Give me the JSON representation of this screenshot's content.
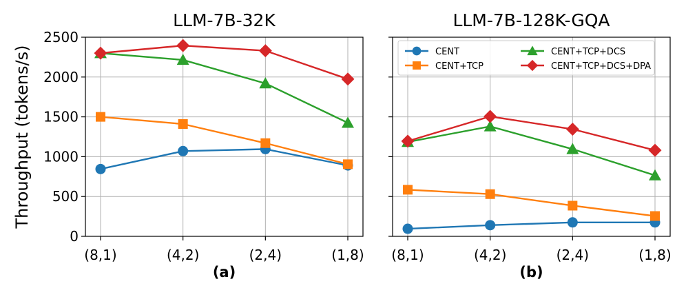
{
  "chart_data": [
    {
      "type": "line",
      "title": "LLM-7B-32K",
      "sublabel": "(a)",
      "ylabel": "Throughput (tokens/s)",
      "categories": [
        "(8,1)",
        "(4,2)",
        "(2,4)",
        "(1,8)"
      ],
      "ylim": [
        0,
        2500
      ],
      "yticks": [
        0,
        500,
        1000,
        1500,
        2000,
        2500
      ],
      "grid": true,
      "series": [
        {
          "name": "CENT",
          "color": "#1f77b4",
          "marker": "circle",
          "values": [
            845,
            1070,
            1095,
            890
          ]
        },
        {
          "name": "CENT+TCP",
          "color": "#ff7f0e",
          "marker": "square",
          "values": [
            1500,
            1410,
            1170,
            905
          ]
        },
        {
          "name": "CENT+TCP+DCS",
          "color": "#2ca02c",
          "marker": "triangle",
          "values": [
            2300,
            2215,
            1920,
            1425
          ]
        },
        {
          "name": "CENT+TCP+DCS+DPA",
          "color": "#d62728",
          "marker": "diamond",
          "values": [
            2300,
            2395,
            2330,
            1975
          ]
        }
      ]
    },
    {
      "type": "line",
      "title": "LLM-7B-128K-GQA",
      "sublabel": "(b)",
      "categories": [
        "(8,1)",
        "(4,2)",
        "(2,4)",
        "(1,8)"
      ],
      "ylim": [
        0,
        2500
      ],
      "grid": true,
      "legend": "top",
      "series": [
        {
          "name": "CENT",
          "color": "#1f77b4",
          "marker": "circle",
          "values": [
            95,
            140,
            175,
            175
          ]
        },
        {
          "name": "CENT+TCP",
          "color": "#ff7f0e",
          "marker": "square",
          "values": [
            585,
            530,
            385,
            255
          ]
        },
        {
          "name": "CENT+TCP+DCS",
          "color": "#2ca02c",
          "marker": "triangle",
          "values": [
            1185,
            1380,
            1095,
            765
          ]
        },
        {
          "name": "CENT+TCP+DCS+DPA",
          "color": "#d62728",
          "marker": "diamond",
          "values": [
            1195,
            1505,
            1345,
            1080
          ]
        }
      ]
    }
  ]
}
